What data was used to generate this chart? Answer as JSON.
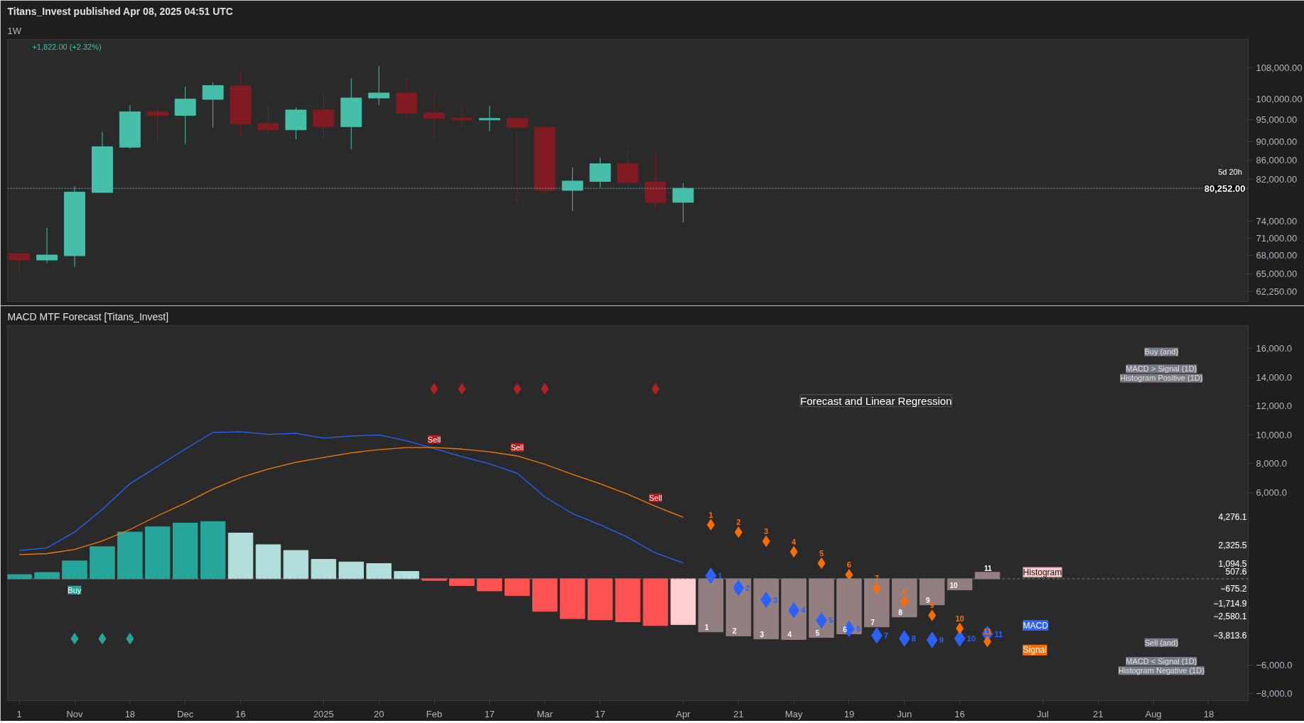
{
  "chart_data": [
    {
      "type": "candlestick",
      "title": "Titans_Invest published Apr 08, 2025 04:51 UTC",
      "subtitle": "1W",
      "x": [
        "2024-10-21",
        "2024-10-28",
        "2024-11-04",
        "2024-11-11",
        "2024-11-18",
        "2024-11-25",
        "2024-12-02",
        "2024-12-09",
        "2024-12-16",
        "2024-12-23",
        "2024-12-30",
        "2025-01-06",
        "2025-01-13",
        "2025-01-20",
        "2025-01-27",
        "2025-02-03",
        "2025-02-10",
        "2025-02-17",
        "2025-02-24",
        "2025-03-03",
        "2025-03-10",
        "2025-03-17",
        "2025-03-24",
        "2025-03-31",
        "2025-04-07"
      ],
      "ohlc": [
        [
          68320,
          68320,
          64820,
          67240
        ],
        [
          67240,
          72800,
          66720,
          68080
        ],
        [
          67960,
          80640,
          66150,
          79510
        ],
        [
          79440,
          92240,
          79440,
          88920
        ],
        [
          88840,
          98570,
          88530,
          96940
        ],
        [
          96940,
          97890,
          89930,
          96100
        ],
        [
          96100,
          103150,
          89540,
          100050
        ],
        [
          99960,
          104230,
          93220,
          103420
        ],
        [
          103330,
          107280,
          91280,
          94120
        ],
        [
          94200,
          98820,
          91520,
          92720
        ],
        [
          92720,
          97970,
          90560,
          97370
        ],
        [
          97370,
          101630,
          90420,
          93460
        ],
        [
          93460,
          105330,
          88370,
          100300
        ],
        [
          100300,
          108500,
          98570,
          101540
        ],
        [
          101540,
          105330,
          95270,
          96610
        ],
        [
          96690,
          101450,
          90340,
          95430
        ],
        [
          95430,
          97890,
          93220,
          95020
        ],
        [
          95020,
          98400,
          92400,
          95350
        ],
        [
          95350,
          95350,
          77530,
          93300
        ],
        [
          93300,
          93540,
          79240,
          79860
        ],
        [
          79860,
          84450,
          75860,
          81710
        ],
        [
          81640,
          86550,
          80360,
          85270
        ],
        [
          85270,
          87830,
          80850,
          81420
        ],
        [
          81490,
          87610,
          76320,
          77530
        ],
        [
          77530,
          81300,
          73760,
          80252
        ]
      ],
      "colors": [
        "#811b22",
        "#45bfa9",
        "#45bfa9",
        "#45bfa9",
        "#45bfa9",
        "#811b22",
        "#45bfa9",
        "#45bfa9",
        "#811b22",
        "#811b22",
        "#45bfa9",
        "#811b22",
        "#45bfa9",
        "#45bfa9",
        "#811b22",
        "#811b22",
        "#811b22",
        "#45bfa9",
        "#811b22",
        "#811b22",
        "#45bfa9",
        "#45bfa9",
        "#811b22",
        "#811b22",
        "#45bfa9"
      ],
      "log": "y",
      "xlim": [
        "2024-10-18",
        "2025-08-28"
      ],
      "ylim": [
        60700,
        115900
      ],
      "yticks": [
        {
          "value": 108000,
          "label": "108,000.00"
        },
        {
          "value": 100000,
          "label": "100,000.00"
        },
        {
          "value": 95000,
          "label": "95,000.00"
        },
        {
          "value": 90000,
          "label": "90,000.00"
        },
        {
          "value": 86000,
          "label": "86,000.00"
        },
        {
          "value": 82000,
          "label": "82,000.00"
        },
        {
          "value": 74000,
          "label": "74,000.00"
        },
        {
          "value": 71000,
          "label": "71,000.00"
        },
        {
          "value": 68000,
          "label": "68,000.00"
        },
        {
          "value": 65000,
          "label": "65,000.00"
        },
        {
          "value": 62250,
          "label": "62,250.00"
        }
      ],
      "tick_labels": "y",
      "ref_lines": [
        {
          "axis": "y",
          "value": 80252,
          "label": "80,252.00",
          "color": "#45bfa9",
          "line_style": "dotted"
        }
      ],
      "annotations": [
        "+1,822.00 (+2.32%)",
        "5d 20h"
      ]
    },
    {
      "type": "bar",
      "title": "MACD MTF Forecast [Titans_Invest]",
      "series": [
        {
          "type": "bar",
          "colors": [
            "#26a69a",
            "#26a69a",
            "#26a69a",
            "#26a69a",
            "#26a69a",
            "#26a69a",
            "#26a69a",
            "#26a69a",
            "#b2dfdb",
            "#b2dfdb",
            "#b2dfdb",
            "#b2dfdb",
            "#b2dfdb",
            "#b2dfdb",
            "#b2dfdb",
            "#ff5252",
            "#ff5252",
            "#ff5252",
            "#ff5252",
            "#ff5252",
            "#ff5252",
            "#ff5252",
            "#ff5252",
            "#ff5252",
            "#ffcdd2"
          ],
          "x": [
            "2024-10-21",
            "2024-10-28",
            "2024-11-04",
            "2024-11-11",
            "2024-11-18",
            "2024-11-25",
            "2024-12-02",
            "2024-12-09",
            "2024-12-16",
            "2024-12-23",
            "2024-12-30",
            "2025-01-06",
            "2025-01-13",
            "2025-01-20",
            "2025-01-27",
            "2025-02-03",
            "2025-02-10",
            "2025-02-17",
            "2025-02-24",
            "2025-03-03",
            "2025-03-10",
            "2025-03-17",
            "2025-03-24",
            "2025-03-31",
            "2025-04-07"
          ],
          "values": [
            290,
            440,
            1240,
            2230,
            3250,
            3610,
            3870,
            3980,
            3180,
            2370,
            1970,
            1350,
            1170,
            1060,
            510,
            -110,
            -470,
            -840,
            -1170,
            -2260,
            -2770,
            -2850,
            -2990,
            -3250,
            -3180
          ]
        },
        {
          "type": "bar",
          "name": "Histogram",
          "color": "#947f80",
          "x": [
            "2025-04-14",
            "2025-04-21",
            "2025-04-28",
            "2025-05-05",
            "2025-05-12",
            "2025-05-19",
            "2025-05-26",
            "2025-06-02",
            "2025-06-09",
            "2025-06-16",
            "2025-06-23"
          ],
          "values": [
            -3690,
            -3970,
            -4180,
            -4220,
            -4080,
            -3830,
            -3340,
            -2650,
            -1810,
            -770,
            450
          ]
        },
        {
          "type": "line",
          "color": "#2962ff",
          "x": [
            "2024-10-21",
            "2024-10-28",
            "2024-11-04",
            "2024-11-11",
            "2024-11-18",
            "2024-11-25",
            "2024-12-02",
            "2024-12-09",
            "2024-12-16",
            "2024-12-23",
            "2024-12-30",
            "2025-01-06",
            "2025-01-13",
            "2025-01-20",
            "2025-01-27",
            "2025-02-03",
            "2025-02-10",
            "2025-02-17",
            "2025-02-24",
            "2025-03-03",
            "2025-03-10",
            "2025-03-17",
            "2025-03-24",
            "2025-03-31",
            "2025-04-07"
          ],
          "values": [
            1970,
            2150,
            3250,
            4820,
            6610,
            7810,
            9020,
            10180,
            10220,
            10040,
            10110,
            9780,
            9930,
            10000,
            9600,
            9050,
            8500,
            7990,
            7340,
            5690,
            4530,
            3760,
            2880,
            1790,
            1100
          ]
        },
        {
          "type": "line",
          "color": "#f57c00",
          "x": [
            "2024-10-21",
            "2024-10-28",
            "2024-11-04",
            "2024-11-11",
            "2024-11-18",
            "2024-11-25",
            "2024-12-02",
            "2024-12-09",
            "2024-12-16",
            "2024-12-23",
            "2024-12-30",
            "2025-01-06",
            "2025-01-13",
            "2025-01-20",
            "2025-01-27",
            "2025-02-03",
            "2025-02-10",
            "2025-02-17",
            "2025-02-24",
            "2025-03-03",
            "2025-03-10",
            "2025-03-17",
            "2025-03-24",
            "2025-03-31",
            "2025-04-07"
          ],
          "values": [
            1680,
            1750,
            2040,
            2630,
            3430,
            4380,
            5260,
            6240,
            7040,
            7630,
            8100,
            8430,
            8760,
            8980,
            9130,
            9130,
            9020,
            8830,
            8540,
            7960,
            7260,
            6610,
            5880,
            5040,
            4270
          ]
        },
        {
          "type": "scatter",
          "name": "MACD",
          "color": "#2962ff",
          "marker": "diamond",
          "x": [
            "2025-04-14",
            "2025-04-21",
            "2025-04-28",
            "2025-05-05",
            "2025-05-12",
            "2025-05-19",
            "2025-05-26",
            "2025-06-02",
            "2025-06-09",
            "2025-06-16",
            "2025-06-23"
          ],
          "values": [
            210,
            -630,
            -1460,
            -2190,
            -2890,
            -3480,
            -3940,
            -4150,
            -4250,
            -4150,
            -3830
          ]
        },
        {
          "type": "scatter",
          "name": "Signal",
          "color": "#ff6d00",
          "marker": "diamond",
          "x": [
            "2025-04-14",
            "2025-04-21",
            "2025-04-28",
            "2025-05-05",
            "2025-05-12",
            "2025-05-19",
            "2025-05-26",
            "2025-06-02",
            "2025-06-09",
            "2025-06-16",
            "2025-06-23"
          ],
          "values": [
            3760,
            3240,
            2610,
            1880,
            1080,
            280,
            -660,
            -1570,
            -2540,
            -3450,
            -4360
          ]
        },
        {
          "type": "scatter",
          "color": "#b22222",
          "marker": "diamond",
          "x": [
            "2025-02-03",
            "2025-02-10",
            "2025-02-24",
            "2025-03-03",
            "2025-03-31"
          ],
          "values": [
            13210,
            13210,
            13210,
            13210,
            13210
          ]
        },
        {
          "type": "scatter",
          "color": "#26a69a",
          "marker": "diamond",
          "x": [
            "2024-11-04",
            "2024-11-11",
            "2024-11-18"
          ],
          "values": [
            -4160,
            -4160,
            -4160
          ]
        }
      ],
      "xlim": [
        "2024-10-18",
        "2025-08-28"
      ],
      "ylim": [
        -8470,
        17600
      ],
      "xticks": [
        {
          "value": "2024-10-21",
          "label": "1"
        },
        {
          "value": "2024-11-04",
          "label": "Nov"
        },
        {
          "value": "2024-11-18",
          "label": "18"
        },
        {
          "value": "2024-12-02",
          "label": "Dec"
        },
        {
          "value": "2024-12-16",
          "label": "16"
        },
        {
          "value": "2025-01-06",
          "label": "2025"
        },
        {
          "value": "2025-01-20",
          "label": "20"
        },
        {
          "value": "2025-02-03",
          "label": "Feb"
        },
        {
          "value": "2025-02-17",
          "label": "17"
        },
        {
          "value": "2025-03-03",
          "label": "Mar"
        },
        {
          "value": "2025-03-17",
          "label": "17"
        },
        {
          "value": "2025-04-07",
          "label": "Apr"
        },
        {
          "value": "2025-04-21",
          "label": "21"
        },
        {
          "value": "2025-05-05",
          "label": "May"
        },
        {
          "value": "2025-05-19",
          "label": "19"
        },
        {
          "value": "2025-06-02",
          "label": "Jun"
        },
        {
          "value": "2025-06-16",
          "label": "16"
        },
        {
          "value": "2025-07-07",
          "label": "Jul"
        },
        {
          "value": "2025-07-21",
          "label": "21"
        },
        {
          "value": "2025-08-04",
          "label": "Aug"
        },
        {
          "value": "2025-08-18",
          "label": "18"
        }
      ],
      "yticks": [
        {
          "value": 16000,
          "label": "16,000.0"
        },
        {
          "value": 14000,
          "label": "14,000.0"
        },
        {
          "value": 12000,
          "label": "12,000.0"
        },
        {
          "value": 10000,
          "label": "10,000.0"
        },
        {
          "value": 8000,
          "label": "8,000.0"
        },
        {
          "value": 6000,
          "label": "6,000.0"
        },
        {
          "value": -6000,
          "label": "−6,000.0"
        },
        {
          "value": -8000,
          "label": "−8,000.0"
        }
      ],
      "ref_lines": [
        {
          "axis": "y",
          "value": 0,
          "color": "#787b86",
          "line_style": "dashed"
        }
      ],
      "annotations": [
        "Forecast and Linear Regression",
        "Buy (and)",
        "MACD > Signal (1D)",
        "Histogram Positive (1D)",
        "Sell (and)",
        "MACD < Signal (1D)",
        "Histogram Negative (1D)",
        "Buy",
        "4,276.1",
        "2,325.5",
        "1,094.5",
        "507.6",
        "−675.2",
        "−1,714.9",
        "−2,580.1",
        "−3,813.6",
        {
          "text": "Sell",
          "x": "2025-02-03",
          "y": 9100
        },
        {
          "text": "Sell",
          "x": "2025-02-24",
          "y": 8540
        },
        {
          "text": "Sell",
          "x": "2025-03-31",
          "y": 5040
        },
        {
          "text": "1",
          "x": "2025-04-14",
          "y": -3690
        },
        {
          "text": "2",
          "x": "2025-04-21",
          "y": -3970
        },
        {
          "text": "3",
          "x": "2025-04-28",
          "y": -4180
        },
        {
          "text": "4",
          "x": "2025-05-05",
          "y": -4220
        },
        {
          "text": "5",
          "x": "2025-05-12",
          "y": -4080
        },
        {
          "text": "6",
          "x": "2025-05-19",
          "y": -3830
        },
        {
          "text": "7",
          "x": "2025-05-26",
          "y": -3340
        },
        {
          "text": "8",
          "x": "2025-06-02",
          "y": -2650
        },
        {
          "text": "9",
          "x": "2025-06-09",
          "y": -1810
        },
        {
          "text": "10",
          "x": "2025-06-16",
          "y": -770
        },
        {
          "text": "11",
          "x": "2025-06-23",
          "y": 450
        },
        {
          "text": "1",
          "x": "2025-04-14",
          "y": 210
        },
        {
          "text": "2",
          "x": "2025-04-21",
          "y": -630
        },
        {
          "text": "3",
          "x": "2025-04-28",
          "y": -1460
        },
        {
          "text": "4",
          "x": "2025-05-05",
          "y": -2190
        },
        {
          "text": "5",
          "x": "2025-05-12",
          "y": -2890
        },
        {
          "text": "6",
          "x": "2025-05-19",
          "y": -3480
        },
        {
          "text": "7",
          "x": "2025-05-26",
          "y": -3940
        },
        {
          "text": "8",
          "x": "2025-06-02",
          "y": -4150
        },
        {
          "text": "9",
          "x": "2025-06-09",
          "y": -4250
        },
        {
          "text": "10",
          "x": "2025-06-16",
          "y": -4150
        },
        {
          "text": "11",
          "x": "2025-06-23",
          "y": -3830
        },
        {
          "text": "1",
          "x": "2025-04-14",
          "y": 3760
        },
        {
          "text": "2",
          "x": "2025-04-21",
          "y": 3240
        },
        {
          "text": "3",
          "x": "2025-04-28",
          "y": 2610
        },
        {
          "text": "4",
          "x": "2025-05-05",
          "y": 1880
        },
        {
          "text": "5",
          "x": "2025-05-12",
          "y": 1080
        },
        {
          "text": "6",
          "x": "2025-05-19",
          "y": 280
        },
        {
          "text": "7",
          "x": "2025-05-26",
          "y": -660
        },
        {
          "text": "8",
          "x": "2025-06-02",
          "y": -1570
        },
        {
          "text": "9",
          "x": "2025-06-09",
          "y": -2540
        },
        {
          "text": "10",
          "x": "2025-06-16",
          "y": -3450
        },
        {
          "text": "11",
          "x": "2025-06-23",
          "y": -4360
        }
      ]
    }
  ]
}
